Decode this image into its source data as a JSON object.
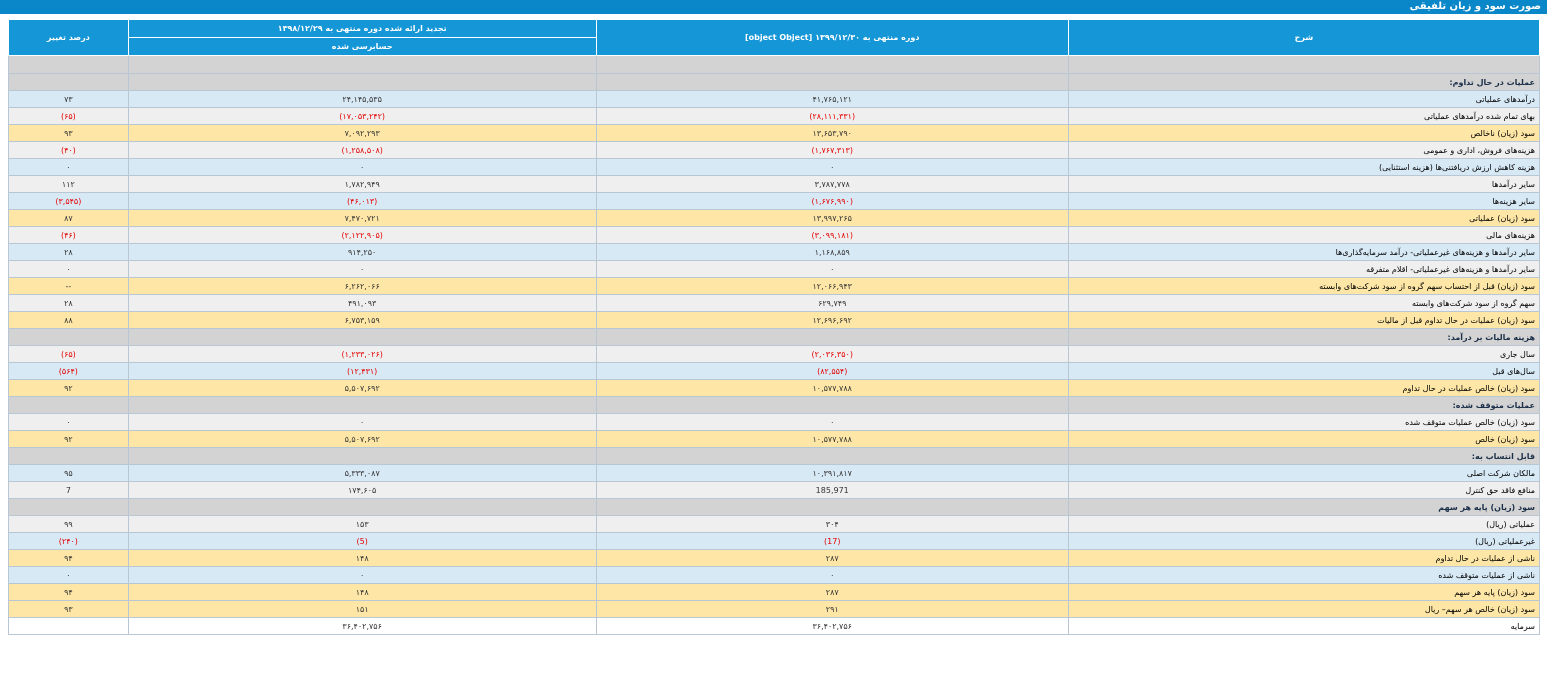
{
  "title": "صورت سود و زیان تلفیقی",
  "headers": {
    "desc": "شرح",
    "current": "دوره منتهی به ۱۳۹۹/۱۲/۳۰ [object Object]",
    "previous": "تجدید ارائه شده دوره منتهی به ۱۳۹۸/۱۲/۲۹",
    "previous_sub": "حسابرسی شده",
    "change": "درصد تغییر"
  },
  "rows": [
    {
      "type": "spacer"
    },
    {
      "type": "section",
      "desc": "عملیات در حال تداوم:"
    },
    {
      "type": "data",
      "style": "blue",
      "desc": "درآمدهای عملیاتی",
      "cur": "۴۱,۷۶۵,۱۲۱",
      "prev": "۲۴,۱۴۵,۵۳۵",
      "chg": "۷۳"
    },
    {
      "type": "data",
      "style": "grey",
      "desc": "بهای تمام شده درآمدهای عملیاتی",
      "cur": "(۲۸,۱۱۱,۳۳۱)",
      "prev": "(۱۷,۰۵۳,۲۴۲)",
      "chg": "(۶۵)"
    },
    {
      "type": "data",
      "style": "yellow",
      "desc": "سود (زیان) ناخالص",
      "cur": "۱۳,۶۵۳,۷۹۰",
      "prev": "۷,۰۹۲,۲۹۳",
      "chg": "۹۳"
    },
    {
      "type": "data",
      "style": "grey",
      "desc": "هزینه‌های فروش، اداری و عمومی",
      "cur": "(۱,۷۶۷,۳۱۳)",
      "prev": "(۱,۲۵۸,۵۰۸)",
      "chg": "(۴۰)"
    },
    {
      "type": "data",
      "style": "blue",
      "desc": "هزینه کاهش ارزش دریافتنی‌ها (هزینه استثنایی)",
      "cur": "۰",
      "prev": "۰",
      "chg": "۰"
    },
    {
      "type": "data",
      "style": "grey",
      "desc": "سایر درآمدها",
      "cur": "۳,۷۸۷,۷۷۸",
      "prev": "۱,۷۸۲,۹۴۹",
      "chg": "۱۱۲"
    },
    {
      "type": "data",
      "style": "blue",
      "desc": "سایر هزینه‌ها",
      "cur": "(۱,۶۷۶,۹۹۰)",
      "prev": "(۴۶,۰۱۳)",
      "chg": "(۳,۵۴۵)"
    },
    {
      "type": "data",
      "style": "yellow",
      "desc": "سود (زیان) عملیاتی",
      "cur": "۱۳,۹۹۷,۲۶۵",
      "prev": "۷,۴۷۰,۷۲۱",
      "chg": "۸۷"
    },
    {
      "type": "data",
      "style": "grey",
      "desc": "هزینه‌های مالی",
      "cur": "(۳,۰۹۹,۱۸۱)",
      "prev": "(۲,۱۲۲,۹۰۵)",
      "chg": "(۴۶)"
    },
    {
      "type": "data",
      "style": "blue",
      "desc": "سایر درآمدها و هزینه‌های غیرعملیاتی- درآمد سرمایه‌گذاری‌ها",
      "cur": "۱,۱۶۸,۸۵۹",
      "prev": "۹۱۴,۲۵۰",
      "chg": "۲۸"
    },
    {
      "type": "data",
      "style": "grey",
      "desc": "سایر درآمدها و هزینه‌های غیرعملیاتی- اقلام متفرقه",
      "cur": "۰",
      "prev": "۰",
      "chg": "۰"
    },
    {
      "type": "data",
      "style": "yellow",
      "desc": "سود (زیان) قبل از احتساب سهم گروه از سود شرکت‌های وابسته",
      "cur": "۱۲,۰۶۶,۹۴۳",
      "prev": "۶,۲۶۲,۰۶۶",
      "chg": "--"
    },
    {
      "type": "data",
      "style": "grey",
      "desc": "سهم گروه از سود شرکت‌های وابسته",
      "cur": "۶۲۹,۷۴۹",
      "prev": "۴۹۱,۰۹۳",
      "chg": "۲۸"
    },
    {
      "type": "data",
      "style": "yellow",
      "desc": "سود (زیان) عملیات در حال تداوم قبل از مالیات",
      "cur": "۱۲,۶۹۶,۶۹۲",
      "prev": "۶,۷۵۳,۱۵۹",
      "chg": "۸۸"
    },
    {
      "type": "section",
      "desc": "هزینه مالیات بر درآمد:"
    },
    {
      "type": "data",
      "style": "grey",
      "desc": "سال جاری",
      "cur": "(۲,۰۳۶,۳۵۰)",
      "prev": "(۱,۲۳۳,۰۲۶)",
      "chg": "(۶۵)"
    },
    {
      "type": "data",
      "style": "blue",
      "desc": "سال‌های قبل",
      "cur": "(۸۲,۵۵۴)",
      "prev": "(۱۲,۴۳۱)",
      "chg": "(۵۶۴)"
    },
    {
      "type": "data",
      "style": "yellow",
      "desc": "سود (زیان) خالص عملیات در حال تداوم",
      "cur": "۱۰,۵۷۷,۷۸۸",
      "prev": "۵,۵۰۷,۶۹۲",
      "chg": "۹۲"
    },
    {
      "type": "section",
      "desc": "عملیات متوقف شده:"
    },
    {
      "type": "data",
      "style": "grey",
      "desc": "سود (زیان) خالص عملیات متوقف شده",
      "cur": "۰",
      "prev": "۰",
      "chg": "۰"
    },
    {
      "type": "data",
      "style": "yellow",
      "desc": "سود (زیان) خالص",
      "cur": "۱۰,۵۷۷,۷۸۸",
      "prev": "۵,۵۰۷,۶۹۲",
      "chg": "۹۲"
    },
    {
      "type": "section",
      "desc": "قابل انتساب به:"
    },
    {
      "type": "data",
      "style": "blue",
      "desc": "مالکان شرکت اصلی",
      "cur": "۱۰,۳۹۱,۸۱۷",
      "prev": "۵,۳۳۳,۰۸۷",
      "chg": "۹۵"
    },
    {
      "type": "data",
      "style": "grey",
      "desc": "منافع فاقد حق کنترل",
      "cur": "185,971",
      "prev": "۱۷۴,۶۰۵",
      "chg": "7"
    },
    {
      "type": "section",
      "desc": "سود (زیان) پایه هر سهم"
    },
    {
      "type": "data",
      "style": "grey",
      "desc": "عملیاتی (ریال)",
      "cur": "۳۰۴",
      "prev": "۱۵۳",
      "chg": "۹۹"
    },
    {
      "type": "data",
      "style": "blue",
      "desc": "غیرعملیاتی (ریال)",
      "cur": "(17)",
      "prev": "(5)",
      "chg": "(۲۴۰)"
    },
    {
      "type": "data",
      "style": "yellow",
      "desc": "ناشی از عملیات در حال تداوم",
      "cur": "۲۸۷",
      "prev": "۱۴۸",
      "chg": "۹۴"
    },
    {
      "type": "data",
      "style": "blue",
      "desc": "ناشی از عملیات متوقف شده",
      "cur": "۰",
      "prev": "۰",
      "chg": "۰"
    },
    {
      "type": "data",
      "style": "yellow",
      "desc": "سود (زیان) پایه هر سهم",
      "cur": "۲۸۷",
      "prev": "۱۴۸",
      "chg": "۹۴"
    },
    {
      "type": "data",
      "style": "yellow",
      "desc": "سود (زیان) خالص هر سهم– ریال",
      "cur": "۲۹۱",
      "prev": "۱۵۱",
      "chg": "۹۳"
    },
    {
      "type": "data",
      "style": "plain",
      "desc": "سرمایه",
      "cur": "۳۶,۴۰۲,۷۵۶",
      "prev": "۳۶,۴۰۲,۷۵۶",
      "chg": ""
    }
  ]
}
